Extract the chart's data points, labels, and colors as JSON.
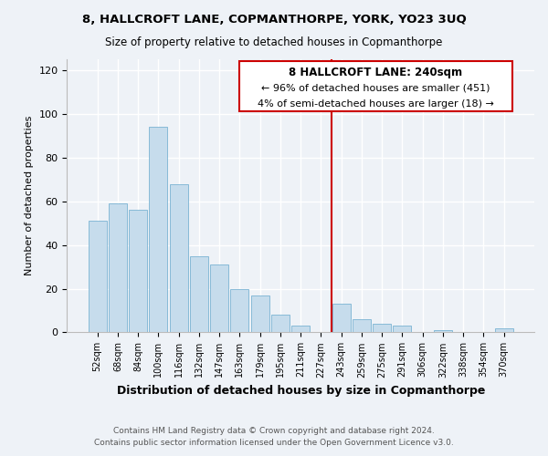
{
  "title": "8, HALLCROFT LANE, COPMANTHORPE, YORK, YO23 3UQ",
  "subtitle": "Size of property relative to detached houses in Copmanthorpe",
  "xlabel": "Distribution of detached houses by size in Copmanthorpe",
  "ylabel": "Number of detached properties",
  "bar_labels": [
    "52sqm",
    "68sqm",
    "84sqm",
    "100sqm",
    "116sqm",
    "132sqm",
    "147sqm",
    "163sqm",
    "179sqm",
    "195sqm",
    "211sqm",
    "227sqm",
    "243sqm",
    "259sqm",
    "275sqm",
    "291sqm",
    "306sqm",
    "322sqm",
    "338sqm",
    "354sqm",
    "370sqm"
  ],
  "bar_values": [
    51,
    59,
    56,
    94,
    68,
    35,
    31,
    20,
    17,
    8,
    3,
    0,
    13,
    6,
    4,
    3,
    0,
    1,
    0,
    0,
    2
  ],
  "bar_color": "#c6dcec",
  "bar_edge_color": "#7ab3d3",
  "vline_x": 12,
  "vline_color": "#cc0000",
  "ylim": [
    0,
    125
  ],
  "yticks": [
    0,
    20,
    40,
    60,
    80,
    100,
    120
  ],
  "annotation_title": "8 HALLCROFT LANE: 240sqm",
  "annotation_line1": "← 96% of detached houses are smaller (451)",
  "annotation_line2": "4% of semi-detached houses are larger (18) →",
  "footer_line1": "Contains HM Land Registry data © Crown copyright and database right 2024.",
  "footer_line2": "Contains public sector information licensed under the Open Government Licence v3.0.",
  "background_color": "#eef2f7",
  "grid_color": "#ffffff",
  "box_facecolor": "#ffffff",
  "box_edgecolor": "#cc0000",
  "title_fontsize": 9.5,
  "subtitle_fontsize": 8.5
}
